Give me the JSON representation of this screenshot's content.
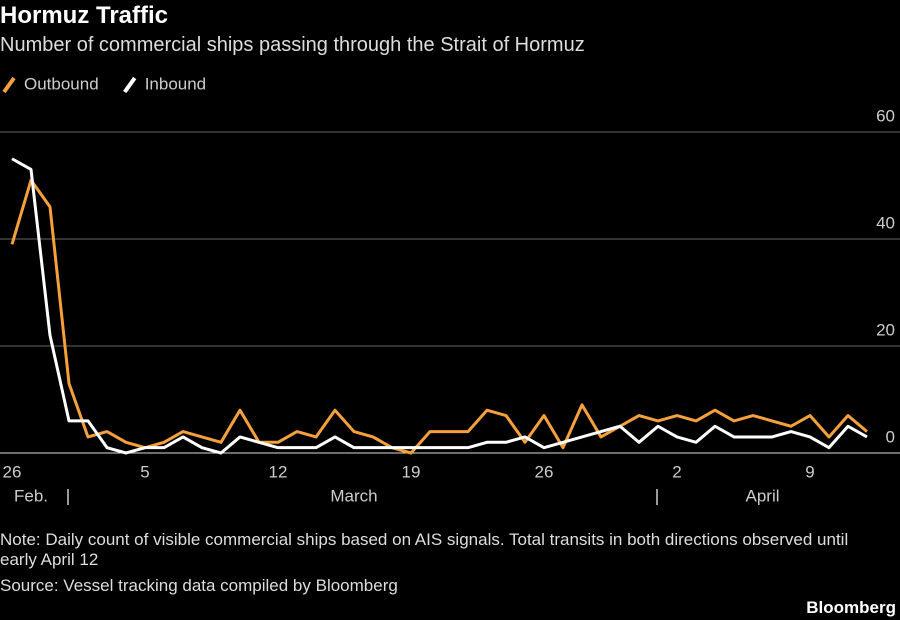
{
  "chart_data": {
    "type": "line",
    "title": "Hormuz Traffic",
    "subtitle": "Number of commercial ships passing through the Strait of Hormuz",
    "categories": [
      "26",
      null,
      null,
      null,
      null,
      null,
      null,
      "5",
      null,
      null,
      null,
      null,
      null,
      null,
      "12",
      null,
      null,
      null,
      null,
      null,
      null,
      "19",
      null,
      null,
      null,
      null,
      null,
      null,
      "26",
      null,
      null,
      null,
      null,
      null,
      null,
      "2",
      null,
      null,
      null,
      null,
      null,
      null,
      "9",
      null,
      null,
      null
    ],
    "x_groups": [
      {
        "label": "Feb.",
        "from": 0,
        "to": 2
      },
      {
        "label": "March",
        "from": 3,
        "to": 33
      },
      {
        "label": "April",
        "from": 34,
        "to": 45
      }
    ],
    "series": [
      {
        "name": "Outbound",
        "color": "#f5a03c",
        "values": [
          39,
          51,
          46,
          13,
          3,
          4,
          2,
          1,
          2,
          4,
          3,
          2,
          8,
          2,
          2,
          4,
          3,
          8,
          4,
          3,
          1,
          0,
          4,
          4,
          4,
          8,
          7,
          2,
          7,
          1,
          9,
          3,
          5,
          7,
          6,
          7,
          6,
          8,
          6,
          7,
          6,
          5,
          7,
          3,
          7,
          4
        ]
      },
      {
        "name": "Inbound",
        "color": "#ffffff",
        "values": [
          55,
          53,
          22,
          6,
          6,
          1,
          0,
          1,
          1,
          3,
          1,
          0,
          3,
          2,
          1,
          1,
          1,
          3,
          1,
          1,
          1,
          1,
          1,
          1,
          1,
          2,
          2,
          3,
          1,
          2,
          3,
          4,
          5,
          2,
          5,
          3,
          2,
          5,
          3,
          3,
          3,
          4,
          3,
          1,
          5,
          3
        ]
      }
    ],
    "ylim": [
      0,
      60
    ],
    "yticks": [
      0,
      20,
      40,
      60
    ],
    "grid": true,
    "note": "Note: Daily count of visible commercial ships based on AIS signals. Total transits in both directions observed until early April 12",
    "source": "Source: Vessel tracking data compiled by Bloomberg",
    "brand": "Bloomberg"
  }
}
